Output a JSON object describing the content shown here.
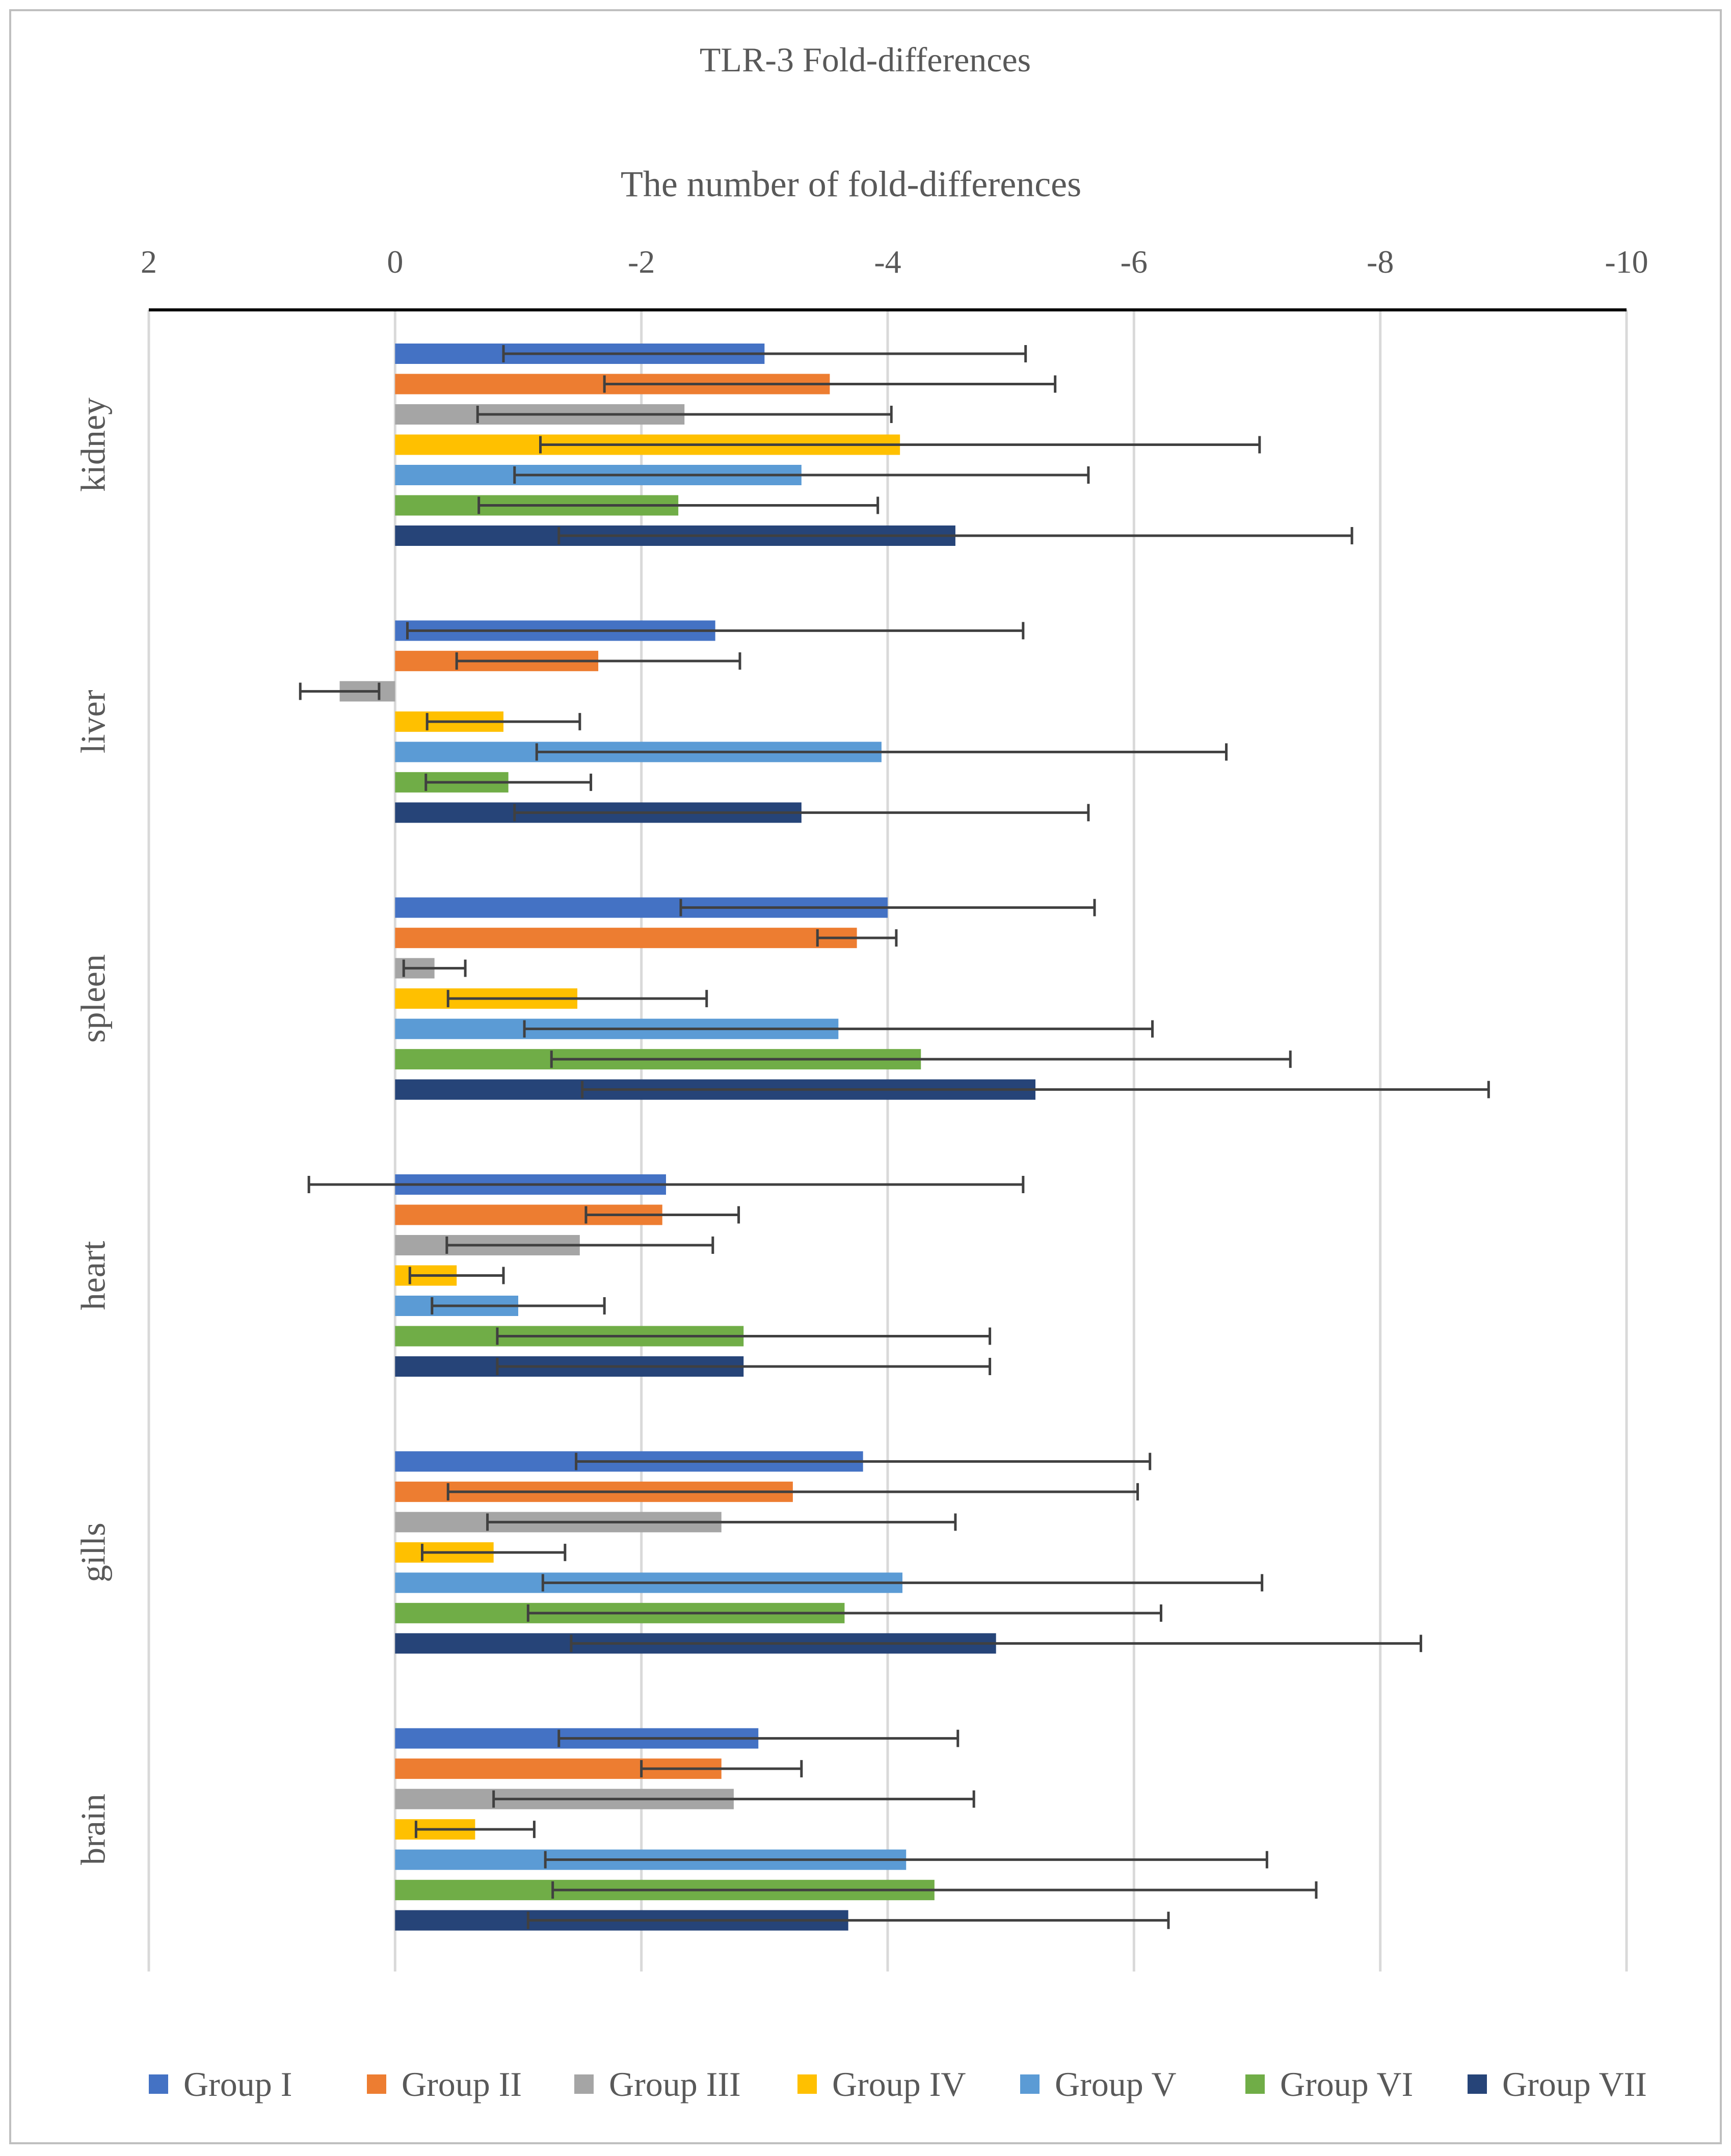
{
  "chart_data": {
    "type": "bar",
    "orientation": "horizontal",
    "title": "TLR-3 Fold-differences",
    "xlabel": "The number of fold-differences",
    "ylabel": "",
    "xlim": [
      2,
      -10
    ],
    "x_ticks": [
      2,
      0,
      -2,
      -4,
      -6,
      -8,
      -10
    ],
    "x_tick_labels": [
      "2",
      "0",
      "-2",
      "-4",
      "-6",
      "-8",
      "-10"
    ],
    "x_axis_position": "top",
    "grid": true,
    "legend_position": "bottom",
    "categories": [
      "kidney",
      "liver",
      "spleen",
      "heart",
      "gills",
      "brain"
    ],
    "series": [
      {
        "name": "Group I",
        "color": "#4472C4",
        "values": [
          -3.0,
          -2.6,
          -4.0,
          -2.2,
          -3.8,
          -2.95
        ],
        "errors": [
          2.12,
          2.5,
          1.68,
          2.9,
          2.33,
          1.62
        ]
      },
      {
        "name": "Group II",
        "color": "#ED7D31",
        "values": [
          -3.53,
          -1.65,
          -3.75,
          -2.17,
          -3.23,
          -2.65
        ],
        "errors": [
          1.83,
          1.15,
          0.32,
          0.62,
          2.8,
          0.65
        ]
      },
      {
        "name": "Group III",
        "color": "#A5A5A5",
        "values": [
          -2.35,
          0.45,
          -0.32,
          -1.5,
          -2.65,
          -2.75
        ],
        "errors": [
          1.68,
          0.32,
          0.25,
          1.08,
          1.9,
          1.95
        ]
      },
      {
        "name": "Group IV",
        "color": "#FFC000",
        "values": [
          -4.1,
          -0.88,
          -1.48,
          -0.5,
          -0.8,
          -0.65
        ],
        "errors": [
          2.92,
          0.62,
          1.05,
          0.38,
          0.58,
          0.48
        ]
      },
      {
        "name": "Group V",
        "color": "#5B9BD5",
        "values": [
          -3.3,
          -3.95,
          -3.6,
          -1.0,
          -4.12,
          -4.15
        ],
        "errors": [
          2.33,
          2.8,
          2.55,
          0.7,
          2.92,
          2.93
        ]
      },
      {
        "name": "Group VI",
        "color": "#70AD47",
        "values": [
          -2.3,
          -0.92,
          -4.27,
          -2.83,
          -3.65,
          -4.38
        ],
        "errors": [
          1.62,
          0.67,
          3.0,
          2.0,
          2.57,
          3.1
        ]
      },
      {
        "name": "Group VII",
        "color": "#264478",
        "values": [
          -4.55,
          -3.3,
          -5.2,
          -2.83,
          -4.88,
          -3.68
        ],
        "errors": [
          3.22,
          2.33,
          3.68,
          2.0,
          3.45,
          2.6
        ]
      }
    ]
  }
}
